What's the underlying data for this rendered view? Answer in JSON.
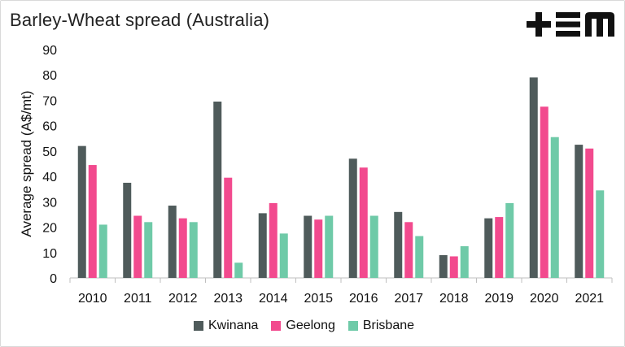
{
  "title": "Barley-Wheat spread (Australia)",
  "logo": {
    "icon": "tem-logo-icon",
    "color": "#111111"
  },
  "chart_data": {
    "type": "bar",
    "categories": [
      "2010",
      "2011",
      "2012",
      "2013",
      "2014",
      "2015",
      "2016",
      "2017",
      "2018",
      "2019",
      "2020",
      "2021"
    ],
    "series": [
      {
        "name": "Kwinana",
        "color": "#4f5b5b",
        "values": [
          52,
          37.5,
          28.5,
          69.5,
          25.5,
          24.5,
          47,
          26,
          9,
          23.5,
          79,
          52.5
        ]
      },
      {
        "name": "Geelong",
        "color": "#f24a8e",
        "values": [
          44.5,
          24.5,
          23.5,
          39.5,
          29.5,
          23,
          43.5,
          22,
          8.5,
          24,
          67.5,
          51
        ]
      },
      {
        "name": "Brisbane",
        "color": "#6fcaa8",
        "values": [
          21,
          22,
          22,
          6,
          17.5,
          24.5,
          24.5,
          16.5,
          12.5,
          29.5,
          55.5,
          34.5
        ]
      }
    ],
    "title": "Barley-Wheat spread (Australia)",
    "xlabel": "",
    "ylabel": "Average spread (A$/mt)",
    "ylim": [
      0,
      90
    ],
    "yticks": [
      "0",
      "10",
      "20",
      "30",
      "40",
      "50",
      "60",
      "70",
      "80",
      "90"
    ],
    "grid": false,
    "legend_position": "bottom"
  }
}
